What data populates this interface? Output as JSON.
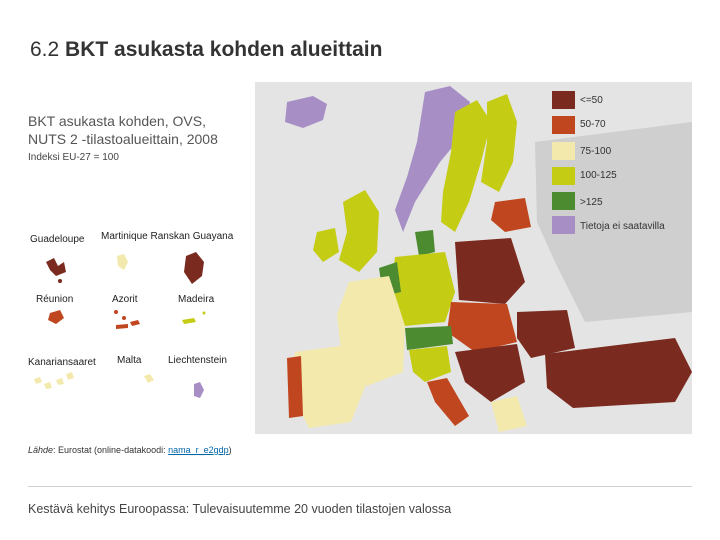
{
  "title_number": "6.2",
  "title_text": "BKT asukasta kohden alueittain",
  "subtitle_line1": "BKT asukasta kohden, OVS,",
  "subtitle_line2": "NUTS 2 -tilastoalueittain, 2008",
  "index_note": "Indeksi EU-27 = 100",
  "legend": [
    {
      "label": "<=50",
      "color": "#7a2a1e"
    },
    {
      "label": "50-70",
      "color": "#c0461f"
    },
    {
      "label": "75-100",
      "color": "#f3e9ad"
    },
    {
      "label": "100-125",
      "color": "#c4cc14"
    },
    {
      "label": ">125",
      "color": "#4c8b30"
    },
    {
      "label": "Tietoja ei saatavilla",
      "color": "#a78fc6"
    }
  ],
  "insets": {
    "guadeloupe": "Guadeloupe",
    "martinique_guayana": "Martinique Ranskan Guayana",
    "reunion": "Réunion",
    "azores": "Azorit",
    "madeira": "Madeira",
    "canarias": "Kanariansaaret",
    "malta": "Malta",
    "liechtenstein": "Liechtenstein"
  },
  "source_label": "Lähde",
  "source_text": ": Eurostat (online-datakoodi: ",
  "source_code": "nama_r_e2gdp",
  "source_end": ")",
  "footer": "Kestävä kehitys Euroopassa: Tulevaisuutemme 20 vuoden tilastojen valossa"
}
